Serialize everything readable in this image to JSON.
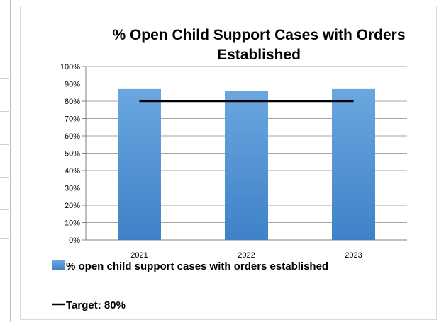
{
  "chart_data": {
    "type": "bar",
    "title": "% Open Child Support Cases with Orders Established",
    "categories": [
      "2021",
      "2022",
      "2023"
    ],
    "series": [
      {
        "name": "% open child support cases with orders established",
        "type": "bar",
        "values": [
          87,
          86,
          87
        ],
        "color": "#5b9bd5"
      },
      {
        "name": "Target: 80%",
        "type": "line",
        "values": [
          80,
          80,
          80
        ],
        "color": "#000000"
      }
    ],
    "ylim": [
      0,
      100
    ],
    "y_ticks": [
      "0%",
      "10%",
      "20%",
      "30%",
      "40%",
      "50%",
      "60%",
      "70%",
      "80%",
      "90%",
      "100%"
    ],
    "grid": true,
    "legend_position": "bottom-left"
  }
}
